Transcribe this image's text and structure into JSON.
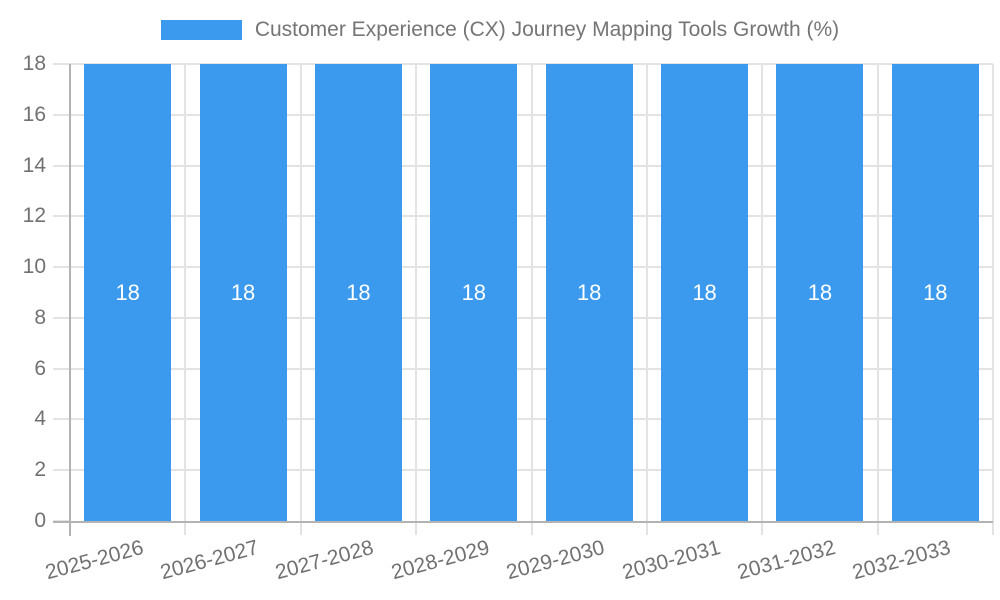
{
  "chart_data": {
    "type": "bar",
    "title": "",
    "legend_label": "Customer Experience (CX) Journey Mapping Tools Growth (%)",
    "legend_position": "top-center",
    "categories": [
      "2025-2026",
      "2026-2027",
      "2027-2028",
      "2028-2029",
      "2029-2030",
      "2030-2031",
      "2031-2032",
      "2032-2033"
    ],
    "values": [
      18,
      18,
      18,
      18,
      18,
      18,
      18,
      18
    ],
    "bar_labels": [
      "18",
      "18",
      "18",
      "18",
      "18",
      "18",
      "18",
      "18"
    ],
    "xlabel": "",
    "ylabel": "",
    "ylim": [
      0,
      18
    ],
    "yticks": [
      0,
      2,
      4,
      6,
      8,
      10,
      12,
      14,
      16,
      18
    ],
    "grid": true,
    "x_label_rotation_deg": -15,
    "colors": {
      "bar": "#3B9AED",
      "bar_label": "#FFFFFF",
      "gridline": "#E3E3E3",
      "tick": "#E3E3E3",
      "axis_line": "#B3B3B3",
      "axis_text": "#717171",
      "legend_text": "#757575",
      "background": "#FFFFFF"
    }
  }
}
